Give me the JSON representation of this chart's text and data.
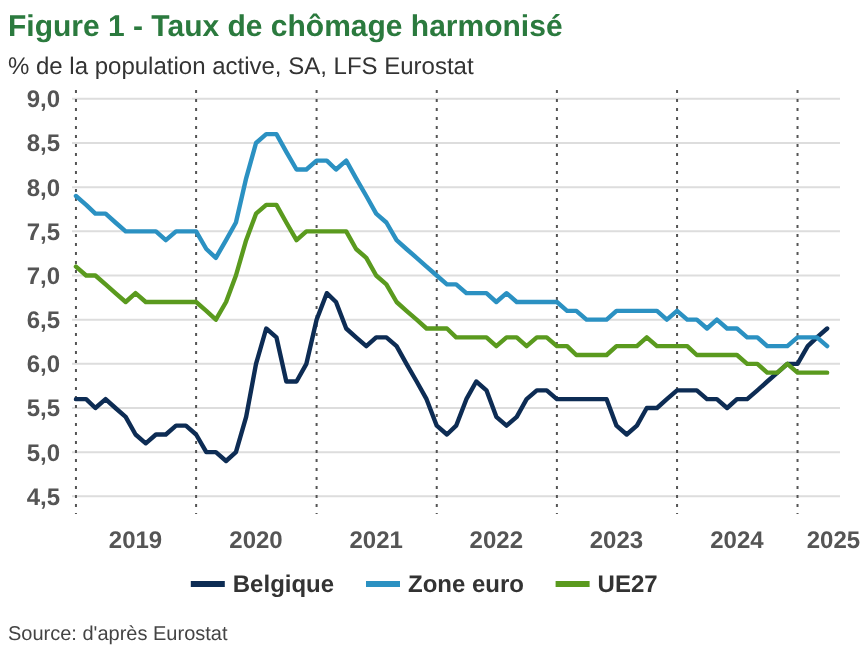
{
  "chart_data": {
    "type": "line",
    "title": "Figure 1 - Taux de chômage harmonisé",
    "subtitle": "% de la population active, SA, LFS Eurostat",
    "annotations": [
      "Source: d'après Eurostat"
    ],
    "x": [
      "2019-01",
      "2019-02",
      "2019-03",
      "2019-04",
      "2019-05",
      "2019-06",
      "2019-07",
      "2019-08",
      "2019-09",
      "2019-10",
      "2019-11",
      "2019-12",
      "2020-01",
      "2020-02",
      "2020-03",
      "2020-04",
      "2020-05",
      "2020-06",
      "2020-07",
      "2020-08",
      "2020-09",
      "2020-10",
      "2020-11",
      "2020-12",
      "2021-01",
      "2021-02",
      "2021-03",
      "2021-04",
      "2021-05",
      "2021-06",
      "2021-07",
      "2021-08",
      "2021-09",
      "2021-10",
      "2021-11",
      "2021-12",
      "2022-01",
      "2022-02",
      "2022-03",
      "2022-04",
      "2022-05",
      "2022-06",
      "2022-07",
      "2022-08",
      "2022-09",
      "2022-10",
      "2022-11",
      "2022-12",
      "2023-01",
      "2023-02",
      "2023-03",
      "2023-04",
      "2023-05",
      "2023-06",
      "2023-07",
      "2023-08",
      "2023-09",
      "2023-10",
      "2023-11",
      "2023-12",
      "2024-01",
      "2024-02",
      "2024-03",
      "2024-04",
      "2024-05",
      "2024-06",
      "2024-07",
      "2024-08",
      "2024-09",
      "2024-10",
      "2024-11",
      "2024-12",
      "2025-01",
      "2025-02",
      "2025-03",
      "2025-04"
    ],
    "series": [
      {
        "name": "Belgique",
        "color": "#0d2c54",
        "values": [
          5.6,
          5.6,
          5.5,
          5.6,
          5.5,
          5.4,
          5.2,
          5.1,
          5.2,
          5.2,
          5.3,
          5.3,
          5.2,
          5.0,
          5.0,
          4.9,
          5.0,
          5.4,
          6.0,
          6.4,
          6.3,
          5.8,
          5.8,
          6.0,
          6.5,
          6.8,
          6.7,
          6.4,
          6.3,
          6.2,
          6.3,
          6.3,
          6.2,
          6.0,
          5.8,
          5.6,
          5.3,
          5.2,
          5.3,
          5.6,
          5.8,
          5.7,
          5.4,
          5.3,
          5.4,
          5.6,
          5.7,
          5.7,
          5.6,
          5.6,
          5.6,
          5.6,
          5.6,
          5.6,
          5.3,
          5.2,
          5.3,
          5.5,
          5.5,
          5.6,
          5.7,
          5.7,
          5.7,
          5.6,
          5.6,
          5.5,
          5.6,
          5.6,
          5.7,
          5.8,
          5.9,
          6.0,
          6.0,
          6.2,
          6.3,
          6.4
        ]
      },
      {
        "name": "Zone euro",
        "color": "#2b91c2",
        "values": [
          7.9,
          7.8,
          7.7,
          7.7,
          7.6,
          7.5,
          7.5,
          7.5,
          7.5,
          7.4,
          7.5,
          7.5,
          7.5,
          7.3,
          7.2,
          7.4,
          7.6,
          8.1,
          8.5,
          8.6,
          8.6,
          8.4,
          8.2,
          8.2,
          8.3,
          8.3,
          8.2,
          8.3,
          8.1,
          7.9,
          7.7,
          7.6,
          7.4,
          7.3,
          7.2,
          7.1,
          7.0,
          6.9,
          6.9,
          6.8,
          6.8,
          6.8,
          6.7,
          6.8,
          6.7,
          6.7,
          6.7,
          6.7,
          6.7,
          6.6,
          6.6,
          6.5,
          6.5,
          6.5,
          6.6,
          6.6,
          6.6,
          6.6,
          6.6,
          6.5,
          6.6,
          6.5,
          6.5,
          6.4,
          6.5,
          6.4,
          6.4,
          6.3,
          6.3,
          6.2,
          6.2,
          6.2,
          6.3,
          6.3,
          6.3,
          6.2
        ]
      },
      {
        "name": "UE27",
        "color": "#5a9a1e",
        "values": [
          7.1,
          7.0,
          7.0,
          6.9,
          6.8,
          6.7,
          6.8,
          6.7,
          6.7,
          6.7,
          6.7,
          6.7,
          6.7,
          6.6,
          6.5,
          6.7,
          7.0,
          7.4,
          7.7,
          7.8,
          7.8,
          7.6,
          7.4,
          7.5,
          7.5,
          7.5,
          7.5,
          7.5,
          7.3,
          7.2,
          7.0,
          6.9,
          6.7,
          6.6,
          6.5,
          6.4,
          6.4,
          6.4,
          6.3,
          6.3,
          6.3,
          6.3,
          6.2,
          6.3,
          6.3,
          6.2,
          6.3,
          6.3,
          6.2,
          6.2,
          6.1,
          6.1,
          6.1,
          6.1,
          6.2,
          6.2,
          6.2,
          6.3,
          6.2,
          6.2,
          6.2,
          6.2,
          6.1,
          6.1,
          6.1,
          6.1,
          6.1,
          6.0,
          6.0,
          5.9,
          5.9,
          6.0,
          5.9,
          5.9,
          5.9,
          5.9
        ]
      }
    ],
    "xlim": [
      "2018-12-20",
      "2025-05-10"
    ],
    "xticks": [
      {
        "value": "2019-07-01",
        "label": "2019"
      },
      {
        "value": "2020-07-01",
        "label": "2020"
      },
      {
        "value": "2021-07-01",
        "label": "2021"
      },
      {
        "value": "2022-07-01",
        "label": "2022"
      },
      {
        "value": "2023-07-01",
        "label": "2023"
      },
      {
        "value": "2024-07-01",
        "label": "2024"
      },
      {
        "value": "2025-04-20",
        "label": "2025"
      }
    ],
    "ylim": [
      4.3,
      9.1
    ],
    "yticks": [
      {
        "value": 4.5,
        "label": "4,5"
      },
      {
        "value": 5,
        "label": "5,0"
      },
      {
        "value": 5.5,
        "label": "5,5"
      },
      {
        "value": 6,
        "label": "6,0"
      },
      {
        "value": 6.5,
        "label": "6,5"
      },
      {
        "value": 7,
        "label": "7,0"
      },
      {
        "value": 7.5,
        "label": "7,5"
      },
      {
        "value": 8,
        "label": "8,0"
      },
      {
        "value": 8.5,
        "label": "8,5"
      },
      {
        "value": 9,
        "label": "9,0"
      }
    ],
    "grid": "y",
    "legend": "bottom",
    "line_style": "solid",
    "ref_lines": [
      {
        "axis": "x",
        "value": "2019-01-01",
        "line_style": "dotted",
        "color": "#555555"
      },
      {
        "axis": "x",
        "value": "2020-01-01",
        "line_style": "dotted",
        "color": "#555555"
      },
      {
        "axis": "x",
        "value": "2021-01-01",
        "line_style": "dotted",
        "color": "#555555"
      },
      {
        "axis": "x",
        "value": "2022-01-01",
        "line_style": "dotted",
        "color": "#555555"
      },
      {
        "axis": "x",
        "value": "2023-01-01",
        "line_style": "dotted",
        "color": "#555555"
      },
      {
        "axis": "x",
        "value": "2024-01-01",
        "line_style": "dotted",
        "color": "#555555"
      },
      {
        "axis": "x",
        "value": "2025-01-01",
        "line_style": "dotted",
        "color": "#555555"
      }
    ]
  }
}
